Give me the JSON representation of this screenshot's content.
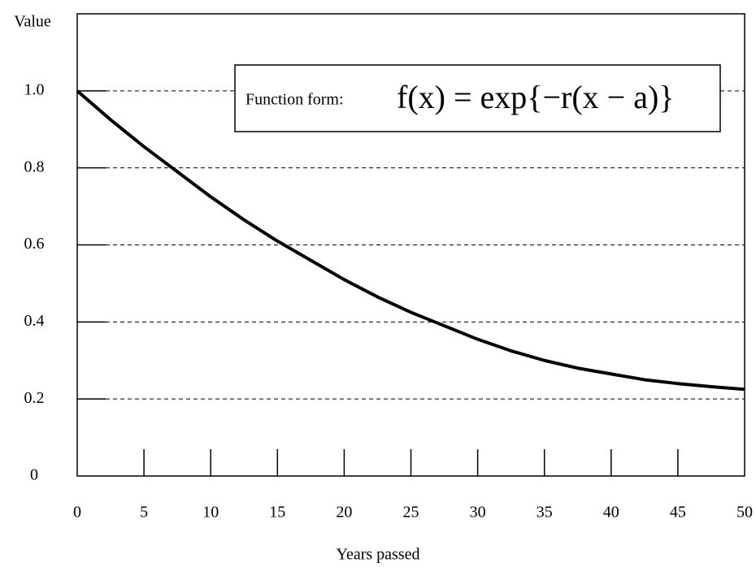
{
  "chart_data": {
    "type": "line",
    "ylabel": "Value",
    "xlabel": "Years passed",
    "annotation": {
      "label": "Function form:",
      "formula": "f(x) = exp{−r(x − a)}"
    },
    "x": [
      0,
      2.5,
      5,
      7.5,
      10,
      12.5,
      15,
      17.5,
      20,
      22.5,
      25,
      27.5,
      30,
      32.5,
      35,
      37.5,
      40,
      42.5,
      45,
      47.5,
      50
    ],
    "series": [
      {
        "color": "#000000",
        "values": [
          1.0,
          0.925,
          0.855,
          0.79,
          0.725,
          0.665,
          0.61,
          0.56,
          0.51,
          0.465,
          0.425,
          0.39,
          0.355,
          0.325,
          0.3,
          0.28,
          0.265,
          0.25,
          0.24,
          0.232,
          0.225
        ]
      }
    ],
    "xlim": [
      0,
      50
    ],
    "xticks": [
      0,
      5,
      10,
      15,
      20,
      25,
      30,
      35,
      40,
      45,
      50
    ],
    "ylim": [
      0,
      1.2
    ],
    "yticks": [
      0,
      {
        "value": 0.2,
        "label": "0.2"
      },
      {
        "value": 0.4,
        "label": "0.4"
      },
      {
        "value": 0.6,
        "label": "0.6"
      },
      {
        "value": 0.8,
        "label": "0.8"
      },
      {
        "value": 1.0,
        "label": "1.0"
      }
    ],
    "grid": true
  }
}
